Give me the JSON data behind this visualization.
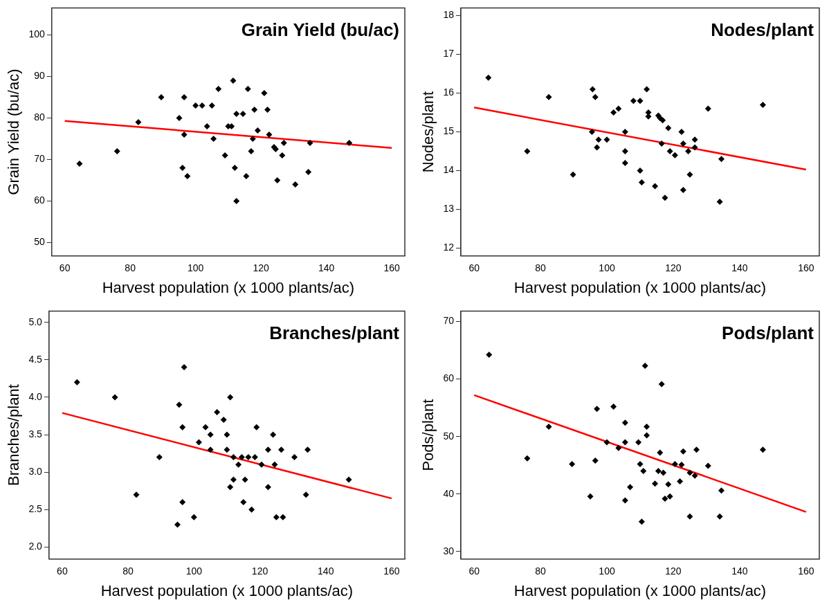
{
  "chart_data": [
    {
      "type": "scatter",
      "title": "Grain Yield (bu/ac)",
      "xlabel": "Harvest population (x 1000 plants/ac)",
      "ylabel": "Grain Yield (bu/ac)",
      "xlim": [
        56,
        164
      ],
      "ylim": [
        46.8,
        106.5
      ],
      "xticks": [
        60,
        80,
        100,
        120,
        140,
        160
      ],
      "yticks": [
        50,
        60,
        70,
        80,
        90,
        100
      ],
      "grid": false,
      "legend": false,
      "series": [
        {
          "marker": "diamond",
          "color": "#000000",
          "x": [
            64.5,
            76,
            82.5,
            89.5,
            95,
            96,
            96.5,
            96.5,
            97.5,
            100,
            102,
            103.5,
            105,
            105.5,
            107,
            109,
            110,
            111,
            111.5,
            112,
            112.5,
            112.5,
            114.5,
            115.5,
            116,
            117,
            117.5,
            118,
            119,
            121,
            122,
            122.5,
            124,
            124.5,
            125,
            126.5,
            127,
            130.5,
            134.5,
            135,
            147
          ],
          "values": [
            69,
            72,
            79,
            85,
            80,
            68,
            85,
            76,
            66,
            83,
            83,
            78,
            83,
            75,
            87,
            71,
            78,
            78,
            89,
            68,
            81,
            60,
            81,
            66,
            87,
            72,
            75,
            82,
            77,
            86,
            82,
            76,
            73,
            72.5,
            65,
            71,
            74,
            64,
            67,
            74,
            74
          ]
        },
        {
          "type": "line",
          "marker": "none",
          "color": "#ff0000",
          "x": [
            60,
            160
          ],
          "values": [
            79.3,
            72.8
          ]
        }
      ]
    },
    {
      "type": "scatter",
      "title": "Nodes/plant",
      "xlabel": "Harvest population (x 1000 plants/ac)",
      "ylabel": "Nodes/plant",
      "xlim": [
        56,
        164
      ],
      "ylim": [
        11.8,
        18.2
      ],
      "xticks": [
        60,
        80,
        100,
        120,
        140,
        160
      ],
      "yticks": [
        12,
        13,
        14,
        15,
        16,
        17,
        18
      ],
      "grid": false,
      "legend": false,
      "series": [
        {
          "marker": "diamond",
          "color": "#000000",
          "x": [
            64.3,
            76,
            82.5,
            89.8,
            95.5,
            95.7,
            96.5,
            97,
            97.5,
            100,
            102,
            103.5,
            105.5,
            105.5,
            105.5,
            108,
            110,
            110,
            110.5,
            112,
            112.5,
            112.5,
            114.5,
            115.5,
            116,
            116.5,
            116.8,
            117.5,
            118.5,
            119,
            120.5,
            122.5,
            123,
            123,
            124.5,
            125,
            126.5,
            126.5,
            130.5,
            134,
            134.5,
            147
          ],
          "values": [
            16.4,
            14.5,
            15.9,
            13.9,
            15.0,
            16.1,
            15.9,
            14.6,
            14.8,
            14.8,
            15.5,
            15.6,
            15.0,
            14.5,
            14.2,
            15.8,
            15.8,
            14.0,
            13.7,
            16.1,
            15.5,
            15.4,
            13.6,
            15.42,
            15.36,
            14.7,
            15.3,
            13.3,
            15.1,
            14.5,
            14.4,
            15.0,
            14.7,
            13.5,
            14.5,
            13.9,
            14.8,
            14.6,
            15.6,
            13.2,
            14.3,
            15.7
          ]
        },
        {
          "type": "line",
          "marker": "none",
          "color": "#ff0000",
          "x": [
            60,
            160
          ],
          "values": [
            15.63,
            14.03
          ]
        }
      ]
    },
    {
      "type": "scatter",
      "title": "Branches/plant",
      "xlabel": "Harvest population (x 1000 plants/ac)",
      "ylabel": "Branches/plant",
      "xlim": [
        56,
        164
      ],
      "ylim": [
        1.84,
        5.15
      ],
      "xticks": [
        60,
        80,
        100,
        120,
        140,
        160
      ],
      "yticks": [
        {
          "value": 2,
          "label": "2.0"
        },
        2.5,
        {
          "value": 3,
          "label": "3.0"
        },
        3.5,
        {
          "value": 4,
          "label": "4.0"
        },
        4.5,
        {
          "value": 5,
          "label": "5.0"
        }
      ],
      "grid": false,
      "legend": false,
      "series": [
        {
          "marker": "diamond",
          "color": "#000000",
          "x": [
            64.5,
            76,
            82.5,
            89.5,
            95,
            95.5,
            96.5,
            96.5,
            97,
            100,
            101.5,
            103.5,
            105,
            105,
            107,
            109,
            110,
            110,
            111,
            111,
            112,
            112,
            113.5,
            114.5,
            115,
            115.5,
            116.5,
            117.5,
            118.5,
            119,
            120.5,
            122.5,
            122.5,
            124,
            124.5,
            125,
            126.5,
            127,
            130.5,
            134,
            134.5,
            147
          ],
          "values": [
            4.2,
            4.0,
            2.7,
            3.2,
            2.3,
            3.9,
            3.6,
            2.6,
            4.4,
            2.4,
            3.4,
            3.6,
            3.5,
            3.3,
            3.8,
            3.7,
            3.5,
            3.3,
            2.8,
            4.0,
            3.2,
            2.9,
            3.1,
            3.2,
            2.6,
            2.9,
            3.2,
            2.5,
            3.2,
            3.6,
            3.1,
            3.3,
            2.8,
            3.5,
            3.1,
            2.4,
            3.3,
            2.4,
            3.2,
            2.7,
            3.3,
            2.9
          ]
        },
        {
          "type": "line",
          "marker": "none",
          "color": "#ff0000",
          "x": [
            60,
            160
          ],
          "values": [
            3.79,
            2.65
          ]
        }
      ]
    },
    {
      "type": "scatter",
      "title": "Pods/plant",
      "xlabel": "Harvest population (x 1000 plants/ac)",
      "ylabel": "Pods/plant",
      "xlim": [
        56,
        164
      ],
      "ylim": [
        28.7,
        71.8
      ],
      "xticks": [
        60,
        80,
        100,
        120,
        140,
        160
      ],
      "yticks": [
        30,
        40,
        50,
        60,
        70
      ],
      "grid": false,
      "legend": false,
      "series": [
        {
          "marker": "diamond",
          "color": "#000000",
          "x": [
            64.5,
            76,
            82.5,
            89.5,
            95,
            96.5,
            97,
            100,
            102,
            103.5,
            105.5,
            105.5,
            105.5,
            107,
            109.5,
            110,
            110.5,
            111,
            111.5,
            112,
            112,
            114.5,
            115.5,
            116,
            116.5,
            117,
            117.5,
            118.5,
            119,
            120.5,
            122,
            122.5,
            123,
            125,
            125,
            126.5,
            127,
            130.5,
            134.5,
            134,
            147
          ],
          "values": [
            64.2,
            46.2,
            51.7,
            45.2,
            39.6,
            45.8,
            54.8,
            49,
            55.2,
            48,
            52.4,
            49,
            38.9,
            41.2,
            49,
            45.2,
            35.2,
            44,
            62.3,
            51.7,
            50.2,
            41.8,
            44,
            47.2,
            59.1,
            43.7,
            39.2,
            41.7,
            39.6,
            45.2,
            42.2,
            45.1,
            47.4,
            36.1,
            43.7,
            43.2,
            47.7,
            44.9,
            40.6,
            36.1,
            47.7
          ]
        },
        {
          "type": "line",
          "marker": "none",
          "color": "#ff0000",
          "x": [
            60,
            160
          ],
          "values": [
            57.2,
            36.9
          ]
        }
      ]
    }
  ]
}
